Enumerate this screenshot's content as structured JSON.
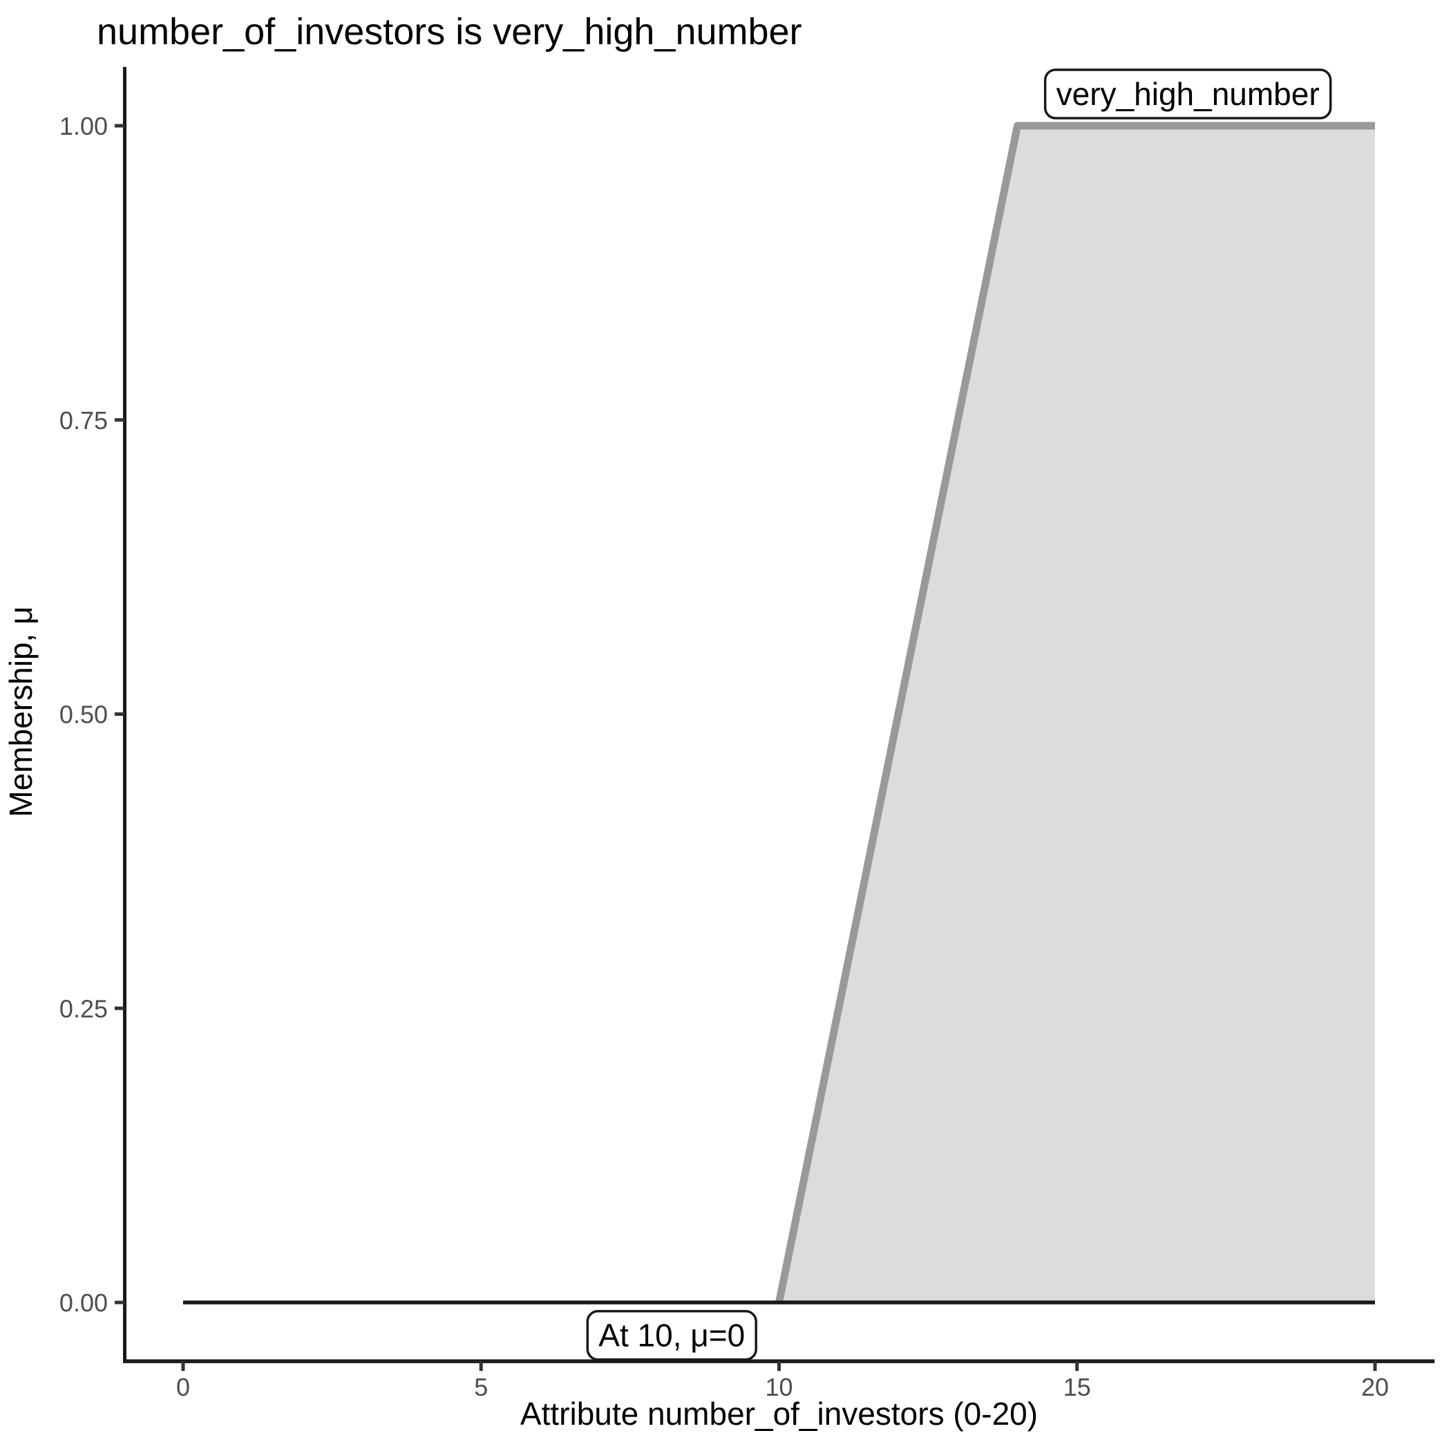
{
  "chart_data": {
    "type": "area",
    "title": "number_of_investors is very_high_number",
    "xlabel": "Attribute number_of_investors (0-20)",
    "ylabel": "Membership, μ",
    "xlim": [
      0,
      20
    ],
    "ylim": [
      0,
      1
    ],
    "grid": false,
    "legend_position": "none",
    "x_ticks": {
      "values": [
        0,
        5,
        10,
        15,
        20
      ],
      "labels": [
        "0",
        "5",
        "10",
        "15",
        "20"
      ]
    },
    "y_ticks": {
      "values": [
        0,
        0.25,
        0.5,
        0.75,
        1
      ],
      "labels": [
        "0.00",
        "0.25",
        "0.50",
        "0.75",
        "1.00"
      ]
    },
    "series": [
      {
        "name": "very_high_number",
        "shape": "trapezoid",
        "points": [
          [
            10,
            0
          ],
          [
            14,
            1
          ],
          [
            20,
            1
          ]
        ],
        "filled": true
      }
    ],
    "baseline": {
      "y": 0,
      "x_from": 0,
      "x_to": 20
    },
    "annotations": [
      {
        "text": "very_high_number",
        "x": 16.86,
        "y": 1.027,
        "boxed": true
      },
      {
        "text": "At 10, μ=0",
        "x": 8.2,
        "y": -0.028,
        "boxed": true
      }
    ],
    "colors": {
      "line": "#999999",
      "fill": "#dcdcdc",
      "baseline": "#1a1a1a",
      "axis": "#1a1a1a",
      "tick": "#333333",
      "tick_label": "#4d4d4d",
      "text": "#000000",
      "annotation_bg": "#ffffff",
      "annotation_border": "#1a1a1a"
    }
  }
}
